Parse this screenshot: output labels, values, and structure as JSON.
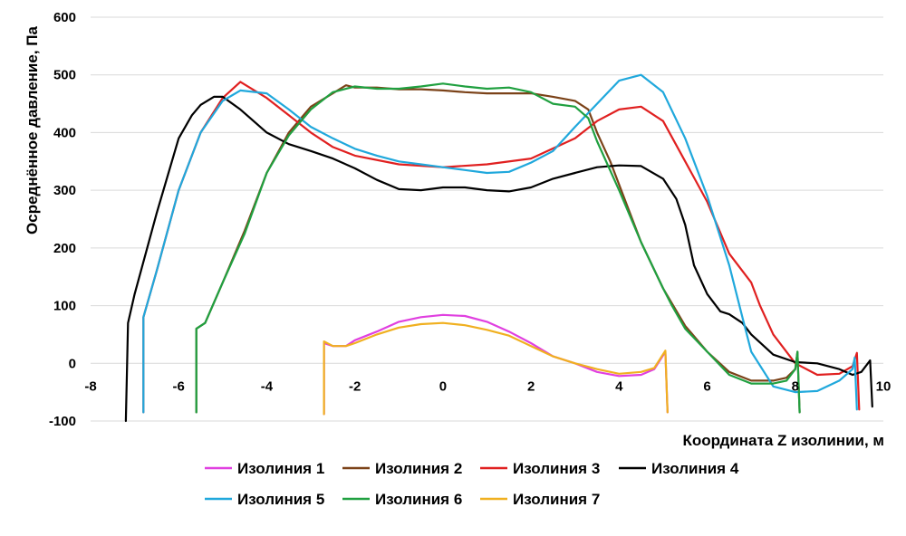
{
  "chart_data": {
    "type": "line",
    "title": "",
    "xlabel": "Координата Z изолинии, м",
    "ylabel": "Осреднённое давление, Па",
    "xlim": [
      -8,
      10
    ],
    "ylim": [
      -100,
      600
    ],
    "xticks": [
      -8,
      -6,
      -4,
      -2,
      0,
      2,
      4,
      6,
      8,
      10
    ],
    "yticks": [
      -100,
      0,
      100,
      200,
      300,
      400,
      500,
      600
    ],
    "x_tick_labels": [
      "-8",
      "-6",
      "-4",
      "-2",
      "0",
      "2",
      "4",
      "6",
      "8",
      "10"
    ],
    "y_tick_labels": [
      "-100",
      "0",
      "100",
      "200",
      "300",
      "400",
      "500",
      "600"
    ],
    "grid": true,
    "legend_position": "bottom",
    "series": [
      {
        "name": "Изолиния 1",
        "color": "#e040e0",
        "points": [
          [
            -2.7,
            -88
          ],
          [
            -2.7,
            35
          ],
          [
            -2.5,
            30
          ],
          [
            -2.2,
            30
          ],
          [
            -2,
            40
          ],
          [
            -1.5,
            55
          ],
          [
            -1,
            72
          ],
          [
            -0.5,
            80
          ],
          [
            0,
            84
          ],
          [
            0.5,
            82
          ],
          [
            1,
            72
          ],
          [
            1.5,
            55
          ],
          [
            2,
            35
          ],
          [
            2.5,
            12
          ],
          [
            3,
            0
          ],
          [
            3.5,
            -15
          ],
          [
            4,
            -22
          ],
          [
            4.5,
            -20
          ],
          [
            4.8,
            -10
          ],
          [
            5.05,
            20
          ],
          [
            5.1,
            -85
          ]
        ]
      },
      {
        "name": "Изолиния 2",
        "color": "#7b4218",
        "points": [
          [
            -5.6,
            -85
          ],
          [
            -5.6,
            60
          ],
          [
            -5.4,
            70
          ],
          [
            -5,
            140
          ],
          [
            -4.5,
            230
          ],
          [
            -4,
            330
          ],
          [
            -3.5,
            400
          ],
          [
            -3,
            445
          ],
          [
            -2.5,
            468
          ],
          [
            -2.2,
            482
          ],
          [
            -2,
            478
          ],
          [
            -1.5,
            478
          ],
          [
            -1,
            475
          ],
          [
            -0.5,
            475
          ],
          [
            0,
            473
          ],
          [
            0.5,
            470
          ],
          [
            1,
            468
          ],
          [
            1.5,
            468
          ],
          [
            2,
            468
          ],
          [
            2.5,
            462
          ],
          [
            3,
            455
          ],
          [
            3.3,
            440
          ],
          [
            3.5,
            400
          ],
          [
            3.8,
            350
          ],
          [
            4,
            310
          ],
          [
            4.5,
            210
          ],
          [
            5,
            130
          ],
          [
            5.5,
            65
          ],
          [
            6,
            20
          ],
          [
            6.5,
            -15
          ],
          [
            7,
            -30
          ],
          [
            7.5,
            -30
          ],
          [
            7.8,
            -25
          ],
          [
            8,
            -10
          ],
          [
            8.05,
            20
          ],
          [
            8.1,
            -85
          ]
        ]
      },
      {
        "name": "Изолиния 3",
        "color": "#e02020",
        "points": [
          [
            -6.8,
            -85
          ],
          [
            -6.8,
            80
          ],
          [
            -6.5,
            160
          ],
          [
            -6,
            300
          ],
          [
            -5.5,
            400
          ],
          [
            -5,
            460
          ],
          [
            -4.6,
            488
          ],
          [
            -4,
            460
          ],
          [
            -3.5,
            430
          ],
          [
            -3,
            400
          ],
          [
            -2.5,
            375
          ],
          [
            -2,
            360
          ],
          [
            -1,
            345
          ],
          [
            0,
            340
          ],
          [
            1,
            345
          ],
          [
            2,
            355
          ],
          [
            3,
            390
          ],
          [
            3.5,
            420
          ],
          [
            4,
            440
          ],
          [
            4.5,
            445
          ],
          [
            5,
            420
          ],
          [
            5.5,
            350
          ],
          [
            6,
            280
          ],
          [
            6.5,
            190
          ],
          [
            7,
            140
          ],
          [
            7.2,
            100
          ],
          [
            7.5,
            50
          ],
          [
            8,
            0
          ],
          [
            8.5,
            -20
          ],
          [
            9,
            -18
          ],
          [
            9.3,
            -5
          ],
          [
            9.4,
            18
          ],
          [
            9.45,
            -80
          ]
        ]
      },
      {
        "name": "Изолиния 4",
        "color": "#000000",
        "points": [
          [
            -7.2,
            -100
          ],
          [
            -7.15,
            70
          ],
          [
            -7,
            120
          ],
          [
            -6.5,
            260
          ],
          [
            -6,
            390
          ],
          [
            -5.7,
            430
          ],
          [
            -5.5,
            448
          ],
          [
            -5.2,
            462
          ],
          [
            -5,
            462
          ],
          [
            -4.6,
            440
          ],
          [
            -4,
            400
          ],
          [
            -3.5,
            380
          ],
          [
            -3,
            368
          ],
          [
            -2.5,
            355
          ],
          [
            -2,
            338
          ],
          [
            -1.5,
            318
          ],
          [
            -1,
            302
          ],
          [
            -0.5,
            300
          ],
          [
            0,
            305
          ],
          [
            0.5,
            305
          ],
          [
            1,
            300
          ],
          [
            1.5,
            298
          ],
          [
            2,
            305
          ],
          [
            2.5,
            320
          ],
          [
            3,
            330
          ],
          [
            3.5,
            340
          ],
          [
            4,
            343
          ],
          [
            4.5,
            342
          ],
          [
            5,
            320
          ],
          [
            5.3,
            285
          ],
          [
            5.5,
            240
          ],
          [
            5.7,
            170
          ],
          [
            6,
            120
          ],
          [
            6.3,
            90
          ],
          [
            6.5,
            85
          ],
          [
            6.8,
            70
          ],
          [
            7,
            50
          ],
          [
            7.5,
            15
          ],
          [
            8,
            2
          ],
          [
            8.5,
            0
          ],
          [
            9,
            -10
          ],
          [
            9.3,
            -20
          ],
          [
            9.5,
            -15
          ],
          [
            9.7,
            5
          ],
          [
            9.75,
            -75
          ]
        ]
      },
      {
        "name": "Изолиния 5",
        "color": "#20a8dc",
        "points": [
          [
            -6.8,
            -85
          ],
          [
            -6.8,
            80
          ],
          [
            -6.5,
            160
          ],
          [
            -6,
            300
          ],
          [
            -5.5,
            400
          ],
          [
            -5,
            455
          ],
          [
            -4.6,
            473
          ],
          [
            -4,
            468
          ],
          [
            -3.5,
            440
          ],
          [
            -3,
            410
          ],
          [
            -2.5,
            390
          ],
          [
            -2,
            372
          ],
          [
            -1.5,
            360
          ],
          [
            -1,
            350
          ],
          [
            -0.5,
            345
          ],
          [
            0,
            340
          ],
          [
            0.5,
            335
          ],
          [
            1,
            330
          ],
          [
            1.5,
            332
          ],
          [
            2,
            348
          ],
          [
            2.5,
            368
          ],
          [
            3,
            410
          ],
          [
            3.5,
            450
          ],
          [
            4,
            490
          ],
          [
            4.5,
            500
          ],
          [
            5,
            470
          ],
          [
            5.5,
            390
          ],
          [
            6,
            290
          ],
          [
            6.5,
            170
          ],
          [
            6.8,
            80
          ],
          [
            7,
            20
          ],
          [
            7.5,
            -40
          ],
          [
            8,
            -50
          ],
          [
            8.5,
            -48
          ],
          [
            9,
            -30
          ],
          [
            9.3,
            -10
          ],
          [
            9.35,
            10
          ],
          [
            9.4,
            -80
          ]
        ]
      },
      {
        "name": "Изолиния 6",
        "color": "#20a040",
        "points": [
          [
            -5.6,
            -85
          ],
          [
            -5.6,
            60
          ],
          [
            -5.4,
            70
          ],
          [
            -5,
            140
          ],
          [
            -4.5,
            225
          ],
          [
            -4,
            330
          ],
          [
            -3.5,
            395
          ],
          [
            -3,
            440
          ],
          [
            -2.5,
            470
          ],
          [
            -2,
            480
          ],
          [
            -1.5,
            476
          ],
          [
            -1,
            476
          ],
          [
            -0.5,
            480
          ],
          [
            0,
            485
          ],
          [
            0.5,
            480
          ],
          [
            1,
            476
          ],
          [
            1.5,
            478
          ],
          [
            2,
            470
          ],
          [
            2.5,
            450
          ],
          [
            3,
            445
          ],
          [
            3.3,
            425
          ],
          [
            3.5,
            385
          ],
          [
            4,
            300
          ],
          [
            4.5,
            210
          ],
          [
            5,
            130
          ],
          [
            5.2,
            100
          ],
          [
            5.5,
            60
          ],
          [
            6,
            20
          ],
          [
            6.5,
            -20
          ],
          [
            7,
            -35
          ],
          [
            7.5,
            -35
          ],
          [
            7.8,
            -30
          ],
          [
            8,
            -10
          ],
          [
            8.05,
            20
          ],
          [
            8.1,
            -85
          ]
        ]
      },
      {
        "name": "Изолиния 7",
        "color": "#f0b020",
        "points": [
          [
            -2.7,
            -88
          ],
          [
            -2.7,
            38
          ],
          [
            -2.5,
            30
          ],
          [
            -2.2,
            30
          ],
          [
            -2,
            35
          ],
          [
            -1.5,
            50
          ],
          [
            -1,
            62
          ],
          [
            -0.5,
            68
          ],
          [
            0,
            70
          ],
          [
            0.5,
            66
          ],
          [
            1,
            58
          ],
          [
            1.5,
            48
          ],
          [
            2,
            30
          ],
          [
            2.5,
            12
          ],
          [
            3,
            0
          ],
          [
            3.5,
            -10
          ],
          [
            4,
            -18
          ],
          [
            4.5,
            -15
          ],
          [
            4.8,
            -8
          ],
          [
            5.05,
            22
          ],
          [
            5.1,
            -85
          ]
        ]
      }
    ]
  }
}
